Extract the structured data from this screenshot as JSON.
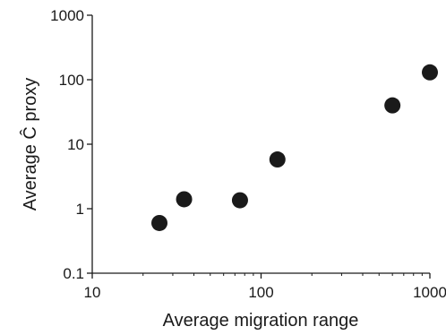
{
  "chart_data": {
    "type": "scatter",
    "xlabel": "Average migration range",
    "ylabel": "Average Ĉ proxy",
    "xscale": "log",
    "yscale": "log",
    "xlim": [
      10,
      1000
    ],
    "ylim": [
      0.1,
      1000
    ],
    "xticks": [
      "10",
      "100",
      "1000"
    ],
    "yticks": [
      "0.1",
      "1",
      "10",
      "100",
      "1000"
    ],
    "grid": false,
    "marker_color": "#1a1a1a",
    "points": [
      {
        "x": 25,
        "y": 0.6
      },
      {
        "x": 35,
        "y": 1.4
      },
      {
        "x": 75,
        "y": 1.35
      },
      {
        "x": 125,
        "y": 5.8
      },
      {
        "x": 600,
        "y": 40
      },
      {
        "x": 1000,
        "y": 130
      }
    ]
  }
}
